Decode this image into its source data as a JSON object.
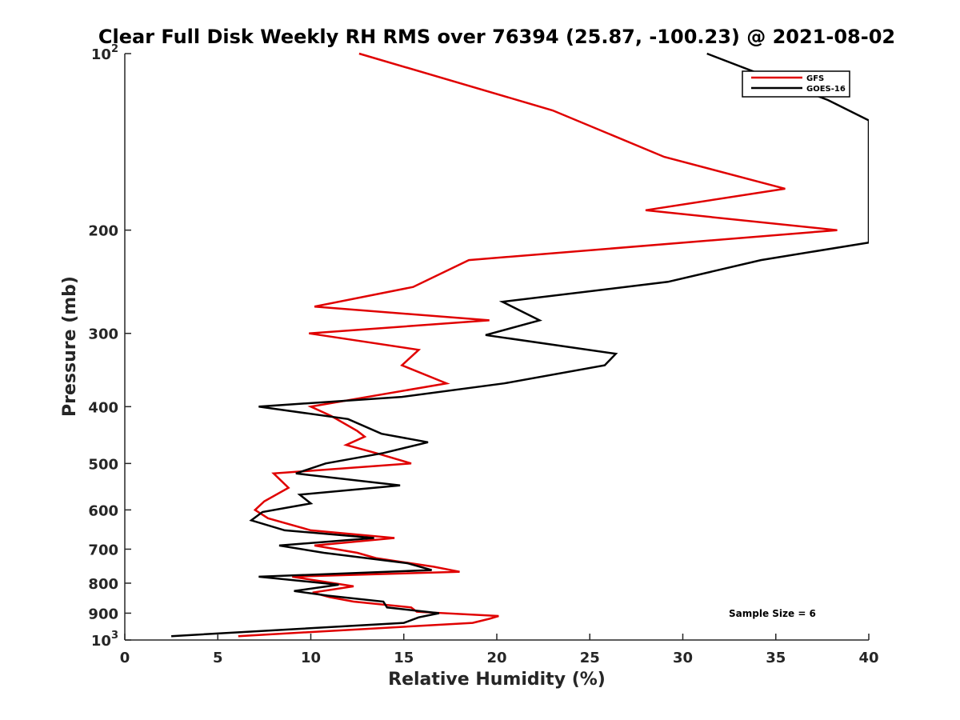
{
  "chart_data": {
    "type": "line",
    "title": "Clear Full Disk Weekly RH RMS over 76394 (25.87, -100.23) @ 2021-08-02",
    "xlabel": "Relative Humidity (%)",
    "ylabel": "Pressure (mb)",
    "xlim": [
      0,
      40
    ],
    "ylim": [
      100,
      1000
    ],
    "y_scale": "log",
    "y_reversed": true,
    "xticks": [
      0,
      5,
      10,
      15,
      20,
      25,
      30,
      35,
      40
    ],
    "yticks": [
      {
        "value": 100,
        "label": "10",
        "exp": "2"
      },
      {
        "value": 200,
        "label": "200",
        "exp": ""
      },
      {
        "value": 300,
        "label": "300",
        "exp": ""
      },
      {
        "value": 400,
        "label": "400",
        "exp": ""
      },
      {
        "value": 500,
        "label": "500",
        "exp": ""
      },
      {
        "value": 600,
        "label": "600",
        "exp": ""
      },
      {
        "value": 700,
        "label": "700",
        "exp": ""
      },
      {
        "value": 800,
        "label": "800",
        "exp": ""
      },
      {
        "value": 900,
        "label": "900",
        "exp": ""
      },
      {
        "value": 1000,
        "label": "10",
        "exp": "3"
      }
    ],
    "grid": false,
    "legend_position": "top-right",
    "annotation": "Sample Size = 6",
    "series": [
      {
        "name": "GFS",
        "color": "#e00000",
        "points": [
          {
            "x": 12.6,
            "p": 100
          },
          {
            "x": 23.0,
            "p": 125
          },
          {
            "x": 29.0,
            "p": 150
          },
          {
            "x": 35.5,
            "p": 170
          },
          {
            "x": 28.0,
            "p": 185
          },
          {
            "x": 38.3,
            "p": 200
          },
          {
            "x": 18.5,
            "p": 225
          },
          {
            "x": 15.5,
            "p": 250
          },
          {
            "x": 10.2,
            "p": 270
          },
          {
            "x": 19.6,
            "p": 285
          },
          {
            "x": 9.9,
            "p": 300
          },
          {
            "x": 15.8,
            "p": 320
          },
          {
            "x": 14.9,
            "p": 340
          },
          {
            "x": 17.3,
            "p": 365
          },
          {
            "x": 10.0,
            "p": 400
          },
          {
            "x": 11.1,
            "p": 415
          },
          {
            "x": 12.5,
            "p": 440
          },
          {
            "x": 12.9,
            "p": 450
          },
          {
            "x": 11.9,
            "p": 465
          },
          {
            "x": 13.5,
            "p": 480
          },
          {
            "x": 15.4,
            "p": 500
          },
          {
            "x": 8.0,
            "p": 520
          },
          {
            "x": 8.8,
            "p": 550
          },
          {
            "x": 7.5,
            "p": 580
          },
          {
            "x": 7.0,
            "p": 600
          },
          {
            "x": 7.7,
            "p": 620
          },
          {
            "x": 10.0,
            "p": 650
          },
          {
            "x": 14.5,
            "p": 670
          },
          {
            "x": 10.2,
            "p": 690
          },
          {
            "x": 12.5,
            "p": 710
          },
          {
            "x": 13.5,
            "p": 725
          },
          {
            "x": 16.6,
            "p": 750
          },
          {
            "x": 18.0,
            "p": 765
          },
          {
            "x": 9.0,
            "p": 780
          },
          {
            "x": 12.3,
            "p": 810
          },
          {
            "x": 10.1,
            "p": 830
          },
          {
            "x": 11.0,
            "p": 845
          },
          {
            "x": 12.3,
            "p": 860
          },
          {
            "x": 15.4,
            "p": 880
          },
          {
            "x": 15.7,
            "p": 895
          },
          {
            "x": 20.1,
            "p": 910
          },
          {
            "x": 19.6,
            "p": 920
          },
          {
            "x": 18.7,
            "p": 935
          },
          {
            "x": 6.1,
            "p": 985
          }
        ]
      },
      {
        "name": "GOES-16",
        "color": "#000000",
        "points": [
          {
            "x": 31.3,
            "p": 100
          },
          {
            "x": 37.8,
            "p": 120
          },
          {
            "x": 40.0,
            "p": 130
          },
          {
            "x": 40.0,
            "p": 210
          },
          {
            "x": 34.2,
            "p": 225
          },
          {
            "x": 29.2,
            "p": 245
          },
          {
            "x": 20.3,
            "p": 265
          },
          {
            "x": 22.3,
            "p": 285
          },
          {
            "x": 19.4,
            "p": 302
          },
          {
            "x": 26.4,
            "p": 325
          },
          {
            "x": 25.8,
            "p": 340
          },
          {
            "x": 20.4,
            "p": 365
          },
          {
            "x": 14.9,
            "p": 385
          },
          {
            "x": 7.2,
            "p": 400
          },
          {
            "x": 12.0,
            "p": 420
          },
          {
            "x": 13.8,
            "p": 445
          },
          {
            "x": 16.3,
            "p": 460
          },
          {
            "x": 13.9,
            "p": 480
          },
          {
            "x": 10.8,
            "p": 500
          },
          {
            "x": 9.2,
            "p": 520
          },
          {
            "x": 14.8,
            "p": 545
          },
          {
            "x": 9.4,
            "p": 565
          },
          {
            "x": 10.0,
            "p": 585
          },
          {
            "x": 7.4,
            "p": 605
          },
          {
            "x": 6.8,
            "p": 625
          },
          {
            "x": 8.6,
            "p": 650
          },
          {
            "x": 13.4,
            "p": 670
          },
          {
            "x": 8.3,
            "p": 690
          },
          {
            "x": 10.7,
            "p": 710
          },
          {
            "x": 15.2,
            "p": 740
          },
          {
            "x": 16.5,
            "p": 760
          },
          {
            "x": 7.2,
            "p": 780
          },
          {
            "x": 11.5,
            "p": 805
          },
          {
            "x": 9.1,
            "p": 825
          },
          {
            "x": 10.9,
            "p": 840
          },
          {
            "x": 13.9,
            "p": 860
          },
          {
            "x": 14.1,
            "p": 880
          },
          {
            "x": 16.9,
            "p": 900
          },
          {
            "x": 15.8,
            "p": 915
          },
          {
            "x": 15.0,
            "p": 935
          },
          {
            "x": 2.5,
            "p": 985
          }
        ]
      }
    ]
  }
}
